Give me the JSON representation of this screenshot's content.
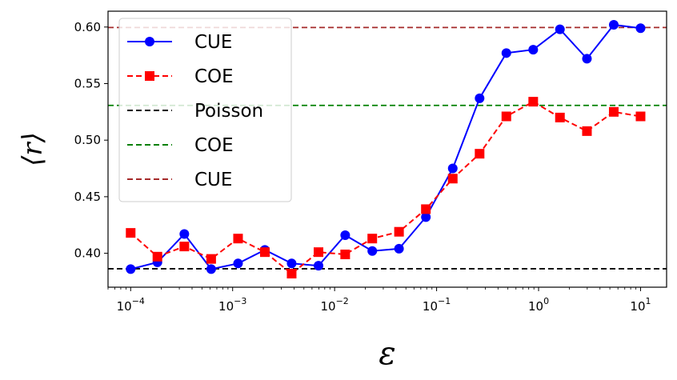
{
  "chart_data": {
    "type": "line",
    "xscale": "log",
    "xlabel": "ε",
    "ylabel": "⟨r⟩",
    "xlim": [
      6e-05,
      18
    ],
    "ylim": [
      0.37,
      0.614
    ],
    "xticks": [
      {
        "value": 0.0001,
        "base": "10",
        "exp": "−4"
      },
      {
        "value": 0.001,
        "base": "10",
        "exp": "−3"
      },
      {
        "value": 0.01,
        "base": "10",
        "exp": "−2"
      },
      {
        "value": 0.1,
        "base": "10",
        "exp": "−1"
      },
      {
        "value": 1,
        "base": "10",
        "exp": "0"
      },
      {
        "value": 10,
        "base": "10",
        "exp": "1"
      }
    ],
    "yticks": [
      {
        "value": 0.4,
        "label": "0.40"
      },
      {
        "value": 0.45,
        "label": "0.45"
      },
      {
        "value": 0.5,
        "label": "0.50"
      },
      {
        "value": 0.55,
        "label": "0.55"
      },
      {
        "value": 0.6,
        "label": "0.60"
      }
    ],
    "x": [
      0.0001,
      0.000183,
      0.000336,
      0.000616,
      0.00113,
      0.00207,
      0.00379,
      0.00695,
      0.0127,
      0.0234,
      0.0428,
      0.0785,
      0.144,
      0.264,
      0.483,
      0.886,
      1.62,
      2.98,
      5.46,
      10
    ],
    "series": [
      {
        "name": "CUE",
        "color": "#0000ff",
        "dash": "solid",
        "marker": "circle",
        "values": [
          0.386,
          0.392,
          0.417,
          0.386,
          0.391,
          0.403,
          0.391,
          0.389,
          0.416,
          0.402,
          0.404,
          0.432,
          0.475,
          0.537,
          0.577,
          0.58,
          0.598,
          0.572,
          0.602,
          0.599
        ]
      },
      {
        "name": "COE",
        "color": "#ff0000",
        "dash": "dashed",
        "marker": "square",
        "values": [
          0.418,
          0.397,
          0.406,
          0.395,
          0.413,
          0.401,
          0.382,
          0.401,
          0.399,
          0.413,
          0.419,
          0.439,
          0.466,
          0.488,
          0.521,
          0.534,
          0.52,
          0.508,
          0.525,
          0.521
        ]
      }
    ],
    "hlines": [
      {
        "name": "Poisson",
        "value": 0.3863,
        "color": "#000000"
      },
      {
        "name": "COE",
        "value": 0.5307,
        "color": "#008000"
      },
      {
        "name": "CUE",
        "value": 0.5996,
        "color": "#a52a2a"
      }
    ],
    "legend": {
      "placement": "top-left"
    }
  }
}
